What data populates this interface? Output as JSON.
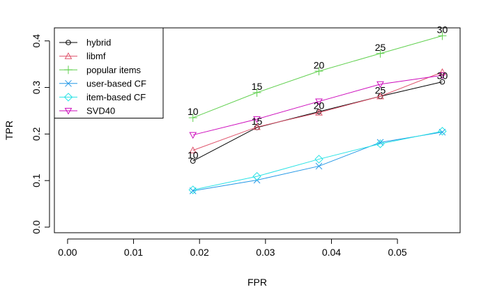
{
  "chart_data": {
    "type": "line",
    "xlabel": "FPR",
    "ylabel": "TPR",
    "xlim": [
      -0.002,
      0.0595
    ],
    "ylim": [
      -0.012,
      0.428
    ],
    "x_ticks": [
      0.0,
      0.01,
      0.02,
      0.03,
      0.04,
      0.05
    ],
    "x_tick_labels": [
      "0.00",
      "0.01",
      "0.02",
      "0.03",
      "0.04",
      "0.05"
    ],
    "y_ticks": [
      0.0,
      0.1,
      0.2,
      0.3,
      0.4
    ],
    "y_tick_labels": [
      "0.0",
      "0.1",
      "0.2",
      "0.3",
      "0.4"
    ],
    "grid": false,
    "legend_position": "top-left",
    "series": [
      {
        "name": "hybrid",
        "color": "#000000",
        "marker": "circle",
        "x": [
          0.019,
          0.0287,
          0.0381,
          0.0474,
          0.0568
        ],
        "y": [
          0.142,
          0.214,
          0.248,
          0.281,
          0.312
        ]
      },
      {
        "name": "libmf",
        "color": "#DF536B",
        "marker": "triangle-up",
        "x": [
          0.019,
          0.0287,
          0.0381,
          0.0474,
          0.0568
        ],
        "y": [
          0.165,
          0.215,
          0.246,
          0.281,
          0.333
        ]
      },
      {
        "name": "popular items",
        "color": "#61D04F",
        "marker": "plus",
        "x": [
          0.019,
          0.0287,
          0.0381,
          0.0474,
          0.0568
        ],
        "y": [
          0.235,
          0.289,
          0.335,
          0.373,
          0.411
        ]
      },
      {
        "name": "user-based CF",
        "color": "#2297E6",
        "marker": "x",
        "x": [
          0.019,
          0.0287,
          0.0381,
          0.0474,
          0.0568
        ],
        "y": [
          0.078,
          0.101,
          0.131,
          0.182,
          0.204
        ]
      },
      {
        "name": "item-based CF",
        "color": "#28E2E5",
        "marker": "diamond",
        "x": [
          0.019,
          0.0287,
          0.0381,
          0.0474,
          0.0568
        ],
        "y": [
          0.08,
          0.109,
          0.146,
          0.179,
          0.206
        ]
      },
      {
        "name": "SVD40",
        "color": "#CD0BBC",
        "marker": "triangle-down",
        "x": [
          0.019,
          0.0287,
          0.0381,
          0.0474,
          0.0568
        ],
        "y": [
          0.198,
          0.232,
          0.27,
          0.307,
          0.326
        ]
      }
    ],
    "annotations": [
      {
        "text": "10",
        "x": 0.019,
        "y": 0.248
      },
      {
        "text": "15",
        "x": 0.0287,
        "y": 0.302
      },
      {
        "text": "20",
        "x": 0.0381,
        "y": 0.348
      },
      {
        "text": "25",
        "x": 0.0474,
        "y": 0.386
      },
      {
        "text": "30",
        "x": 0.0568,
        "y": 0.424
      },
      {
        "text": "10",
        "x": 0.019,
        "y": 0.155
      },
      {
        "text": "15",
        "x": 0.0287,
        "y": 0.227
      },
      {
        "text": "20",
        "x": 0.0381,
        "y": 0.261
      },
      {
        "text": "25",
        "x": 0.0474,
        "y": 0.294
      },
      {
        "text": "30",
        "x": 0.0568,
        "y": 0.325
      }
    ]
  }
}
